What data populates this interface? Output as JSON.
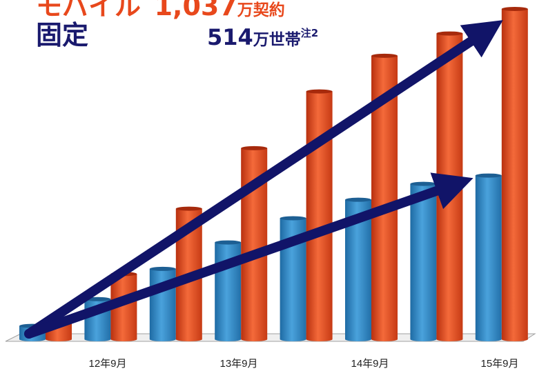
{
  "header": {
    "mobile_label": "モバイル",
    "mobile_value": "1,037",
    "mobile_unit": "万契約",
    "fixed_label": "固定",
    "fixed_value": "514",
    "fixed_unit": "万世帯",
    "fixed_note": "注2"
  },
  "colors": {
    "mobile": "#e8481c",
    "fixed": "#2c86c4",
    "arrow": "#111468",
    "axis": "#a0a0a0"
  },
  "chart_data": {
    "type": "bar",
    "title": "",
    "xlabel": "",
    "ylabel": "",
    "ylim": [
      0,
      1037
    ],
    "tick_labels": [
      "12年9月",
      "13年9月",
      "14年9月",
      "15年9月"
    ],
    "categories": [
      "",
      "12年9月",
      "",
      "13年9月",
      "",
      "14年9月",
      "",
      "15年9月"
    ],
    "series": [
      {
        "name": "モバイル",
        "values": [
          60,
          205,
          410,
          600,
          778,
          890,
          960,
          1037
        ]
      },
      {
        "name": "固定",
        "values": [
          42,
          126,
          221,
          304,
          380,
          438,
          488,
          514
        ]
      }
    ],
    "grid": false,
    "trend_arrows": true
  }
}
